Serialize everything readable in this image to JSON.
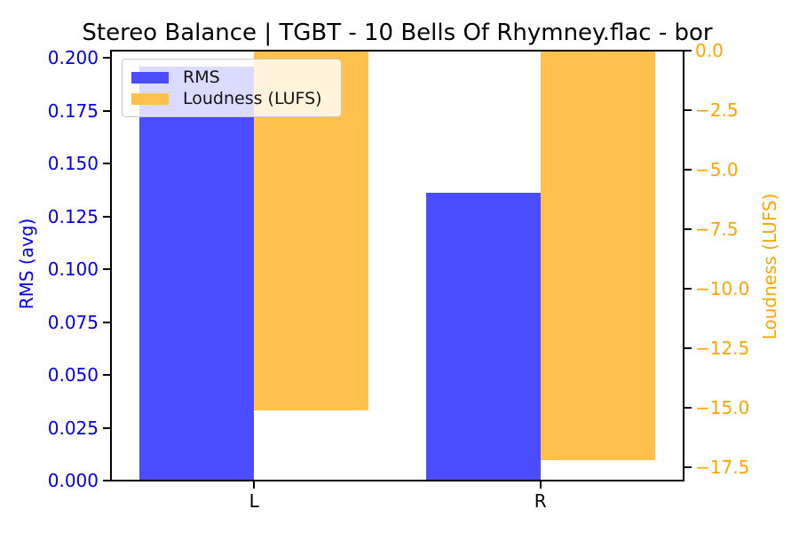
{
  "title": "Stereo Balance | TGBT - 10 Bells Of Rhymney.flac - bor",
  "chart_data": {
    "type": "bar",
    "categories": [
      "L",
      "R"
    ],
    "series": [
      {
        "name": "RMS",
        "axis": "left",
        "color": "#4C4CFF",
        "values": [
          0.196,
          0.136
        ]
      },
      {
        "name": "Loudness (LUFS)",
        "axis": "right",
        "color": "#FFC04C",
        "values": [
          -15.1,
          -17.2
        ]
      }
    ],
    "left_axis": {
      "label": "RMS (avg)",
      "color": "#0000F0",
      "range": [
        0,
        0.2034
      ],
      "ticks": [
        {
          "value": 0.0,
          "label": "0.000"
        },
        {
          "value": 0.025,
          "label": "0.025"
        },
        {
          "value": 0.05,
          "label": "0.050"
        },
        {
          "value": 0.075,
          "label": "0.075"
        },
        {
          "value": 0.1,
          "label": "0.100"
        },
        {
          "value": 0.125,
          "label": "0.125"
        },
        {
          "value": 0.15,
          "label": "0.150"
        },
        {
          "value": 0.175,
          "label": "0.175"
        },
        {
          "value": 0.2,
          "label": "0.200"
        }
      ]
    },
    "right_axis": {
      "label": "Loudness (LUFS)",
      "color": "#FFA500",
      "range": [
        -18.05,
        0
      ],
      "ticks": [
        {
          "value": 0.0,
          "label": "0.0"
        },
        {
          "value": -2.5,
          "label": "−2.5"
        },
        {
          "value": -5.0,
          "label": "−5.0"
        },
        {
          "value": -7.5,
          "label": "−7.5"
        },
        {
          "value": -10.0,
          "label": "−10.0"
        },
        {
          "value": -12.5,
          "label": "−12.5"
        },
        {
          "value": -15.0,
          "label": "−15.0"
        },
        {
          "value": -17.5,
          "label": "−17.5"
        }
      ]
    },
    "x_axis": {
      "tick_labels": [
        "L",
        "R"
      ]
    },
    "legend": {
      "position": "upper-left"
    },
    "grid": false
  }
}
